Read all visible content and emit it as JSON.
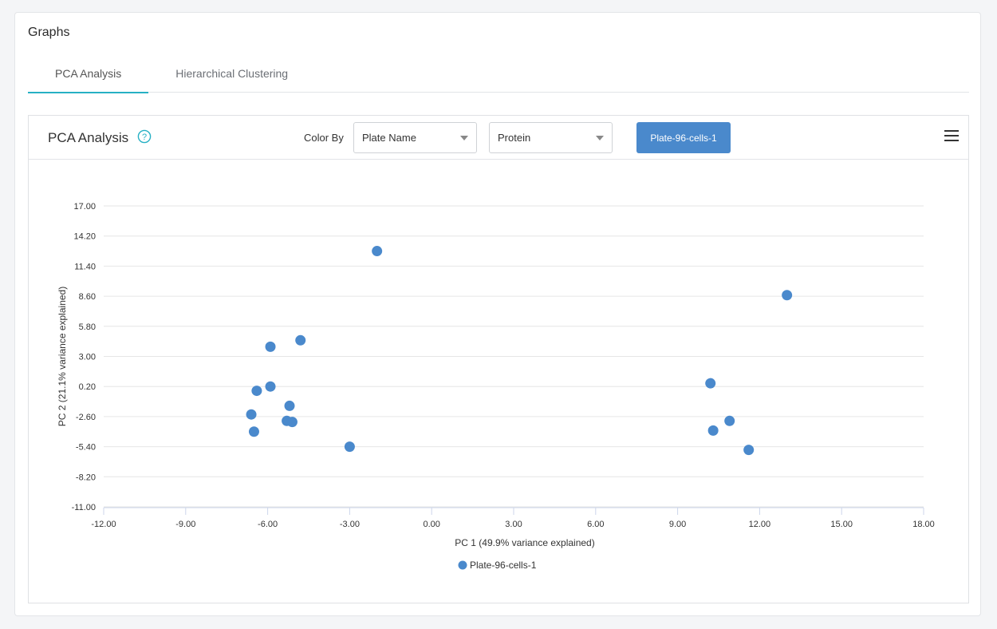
{
  "card": {
    "title": "Graphs"
  },
  "tabs": [
    {
      "label": "PCA Analysis",
      "active": true
    },
    {
      "label": "Hierarchical Clustering",
      "active": false
    }
  ],
  "panel": {
    "title": "PCA Analysis",
    "help_icon": "question-circle-icon",
    "color_by_label": "Color By",
    "select_color_by": {
      "value": "Plate Name"
    },
    "select_protein": {
      "value": "Protein"
    },
    "plate_button_label": "Plate-96-cells-1",
    "menu_icon": "hamburger-menu-icon"
  },
  "colors": {
    "accent": "#26b0c4",
    "button": "#4a89cc",
    "point": "#4a89cc"
  },
  "chart_data": {
    "type": "scatter",
    "xlabel": "PC 1 (49.9% variance explained)",
    "ylabel": "PC 2 (21.1% variance explained)",
    "xlim": [
      -12,
      18
    ],
    "ylim": [
      -11,
      17
    ],
    "x_ticks": [
      "-12.00",
      "-9.00",
      "-6.00",
      "-3.00",
      "0.00",
      "3.00",
      "6.00",
      "9.00",
      "12.00",
      "15.00",
      "18.00"
    ],
    "y_ticks": [
      "17.00",
      "14.20",
      "11.40",
      "8.60",
      "5.80",
      "3.00",
      "0.20",
      "-2.60",
      "-5.40",
      "-8.20",
      "-11.00"
    ],
    "grid": "horizontal",
    "legend_position": "bottom-center",
    "series": [
      {
        "name": "Plate-96-cells-1",
        "color": "#4a89cc",
        "points": [
          [
            -2.0,
            12.8
          ],
          [
            13.0,
            8.7
          ],
          [
            -4.8,
            4.5
          ],
          [
            -5.9,
            3.9
          ],
          [
            -5.9,
            0.2
          ],
          [
            -6.4,
            -0.2
          ],
          [
            -5.2,
            -1.6
          ],
          [
            -6.6,
            -2.4
          ],
          [
            -5.3,
            -3.0
          ],
          [
            -5.1,
            -3.1
          ],
          [
            -6.5,
            -4.0
          ],
          [
            -3.0,
            -5.4
          ],
          [
            10.2,
            0.5
          ],
          [
            10.9,
            -3.0
          ],
          [
            10.3,
            -3.9
          ],
          [
            11.6,
            -5.7
          ]
        ]
      }
    ]
  }
}
